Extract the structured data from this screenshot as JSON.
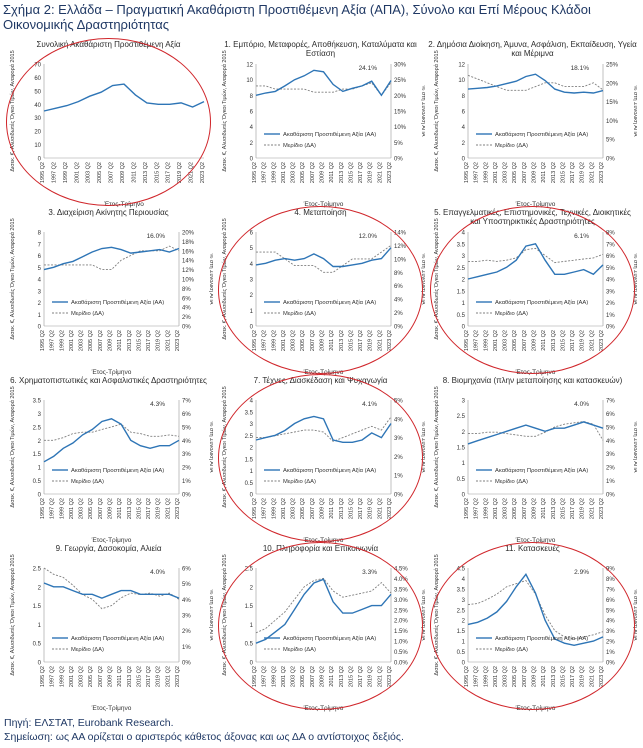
{
  "title": "Σχήμα 2: Ελλάδα – Πραγματική Ακαθάριστη Προστιθέμενη Αξία (ΑΠΑ), Σύνολο και Επί Μέρους Κλάδοι Οικονομικής Δραστηριότητας",
  "source": "Πηγή: ΕΛΣΤΑΤ, Eurobank Research.",
  "note": "Σημείωση: ως ΑΑ ορίζεται ο αριστερός κάθετος άξονας και ως ΔΑ ο αντίστοιχος δεξιός.",
  "colors": {
    "main": "#2e75b6",
    "share": "#7f7f7f",
    "highlight": "#d0262b",
    "text": "#1f3864"
  },
  "legend": {
    "main": "Ακαθάριστη Προστιθέμενη Αξία (ΑΑ)",
    "share": "Μερίδιο (ΔΑ)"
  },
  "ylabel_left": "Δισεκ. €, Αλυσιδωτές Όγκοι Τιμών, Αναφορά 2015",
  "ylabel_right": "% στη Συνολική ΑΠΑ",
  "xlabel": "Έτος-Τρίμηνο",
  "chart_data": [
    {
      "type": "line",
      "title": "Συνολική Ακαθάριστη Προστιθέμενη Αξία",
      "ylim": [
        0,
        70
      ],
      "yticks": [
        0,
        10,
        20,
        30,
        40,
        50,
        60,
        70
      ],
      "x": [
        "1995 Q2",
        "1997 Q2",
        "1999 Q2",
        "2001 Q2",
        "2003 Q2",
        "2005 Q2",
        "2007 Q2",
        "2009 Q2",
        "2011 Q2",
        "2013 Q2",
        "2015 Q2",
        "2017 Q2",
        "2019 Q2",
        "2021 Q2",
        "2023 Q2"
      ],
      "series": [
        {
          "name": "Ακαθάριστη Προστιθέμενη Αξία (ΑΑ)",
          "values": [
            35,
            37,
            39,
            42,
            46,
            49,
            54,
            55,
            47,
            41,
            40,
            40,
            41,
            38,
            42
          ]
        }
      ],
      "circled": true
    },
    {
      "type": "line",
      "title": "1. Εμπόριο, Μεταφορές, Αποθήκευση, Καταλύματα και Εστίαση",
      "ylim": [
        0,
        12
      ],
      "y2lim": [
        0,
        0.3
      ],
      "yticks": [
        0,
        2,
        4,
        6,
        8,
        10,
        12
      ],
      "y2ticks": [
        "0%",
        "5%",
        "10%",
        "15%",
        "20%",
        "25%",
        "30%"
      ],
      "annotation": "24.1%",
      "x": [
        "1995 Q2",
        "1997 Q2",
        "1999 Q2",
        "2001 Q2",
        "2003 Q2",
        "2005 Q2",
        "2007 Q2",
        "2009 Q2",
        "2011 Q2",
        "2013 Q2",
        "2015 Q2",
        "2017 Q2",
        "2019 Q2",
        "2021 Q2",
        "2023 Q2"
      ],
      "series": [
        {
          "name": "Ακαθάριστη Προστιθέμενη Αξία (ΑΑ)",
          "values": [
            8.0,
            8.3,
            8.5,
            9.2,
            10.0,
            10.5,
            11.2,
            11.0,
            9.4,
            8.5,
            8.9,
            9.2,
            9.8,
            8.0,
            9.9
          ]
        },
        {
          "name": "Μερίδιο (ΔΑ)",
          "values": [
            0.23,
            0.23,
            0.22,
            0.22,
            0.22,
            0.22,
            0.21,
            0.21,
            0.21,
            0.22,
            0.22,
            0.23,
            0.24,
            0.2,
            0.241
          ]
        }
      ],
      "circled": false
    },
    {
      "type": "line",
      "title": "2. Δημόσια Διοίκηση, Άμυνα, Ασφάλιση, Εκπαίδευση, Υγεία και Μέριμνα",
      "ylim": [
        0,
        12
      ],
      "y2lim": [
        0,
        0.25
      ],
      "yticks": [
        0,
        2,
        4,
        6,
        8,
        10,
        12
      ],
      "y2ticks": [
        "0%",
        "5%",
        "10%",
        "15%",
        "20%",
        "25%"
      ],
      "annotation": "18.1%",
      "x": [
        "1995 Q2",
        "1997 Q2",
        "1999 Q2",
        "2001 Q2",
        "2003 Q2",
        "2005 Q2",
        "2007 Q2",
        "2009 Q2",
        "2011 Q2",
        "2013 Q2",
        "2015 Q2",
        "2017 Q2",
        "2019 Q2",
        "2021 Q2",
        "2023 Q2"
      ],
      "series": [
        {
          "name": "Ακαθάριστη Προστιθέμενη Αξία (ΑΑ)",
          "values": [
            8.8,
            8.9,
            9.0,
            9.2,
            9.5,
            9.8,
            10.4,
            10.7,
            9.9,
            8.8,
            8.4,
            8.3,
            8.4,
            8.3,
            8.6
          ]
        },
        {
          "name": "Μερίδιο (ΔΑ)",
          "values": [
            0.22,
            0.21,
            0.2,
            0.19,
            0.18,
            0.18,
            0.18,
            0.19,
            0.2,
            0.2,
            0.19,
            0.19,
            0.19,
            0.2,
            0.181
          ]
        }
      ],
      "circled": false
    },
    {
      "type": "line",
      "title": "3. Διαχείριση Ακίνητης Περιουσίας",
      "ylim": [
        0,
        8
      ],
      "y2lim": [
        0,
        0.2
      ],
      "yticks": [
        0,
        1,
        2,
        3,
        4,
        5,
        6,
        7,
        8
      ],
      "y2ticks": [
        "0%",
        "2%",
        "4%",
        "6%",
        "8%",
        "10%",
        "12%",
        "14%",
        "16%",
        "18%",
        "20%"
      ],
      "annotation": "16.0%",
      "x": [
        "1995 Q2",
        "1997 Q2",
        "1999 Q2",
        "2001 Q2",
        "2003 Q2",
        "2005 Q2",
        "2007 Q2",
        "2009 Q2",
        "2011 Q2",
        "2013 Q2",
        "2015 Q2",
        "2017 Q2",
        "2019 Q2",
        "2021 Q2",
        "2023 Q2"
      ],
      "series": [
        {
          "name": "Ακαθάριστη Προστιθέμενη Αξία (ΑΑ)",
          "values": [
            4.8,
            5.0,
            5.3,
            5.5,
            5.9,
            6.3,
            6.6,
            6.7,
            6.5,
            6.2,
            6.3,
            6.4,
            6.5,
            6.3,
            6.6
          ]
        },
        {
          "name": "Μερίδιο (ΔΑ)",
          "values": [
            0.13,
            0.13,
            0.13,
            0.13,
            0.13,
            0.13,
            0.12,
            0.12,
            0.14,
            0.15,
            0.16,
            0.16,
            0.16,
            0.17,
            0.16
          ]
        }
      ],
      "circled": false
    },
    {
      "type": "line",
      "title": "4. Μεταποίηση",
      "ylim": [
        0,
        6
      ],
      "y2lim": [
        0,
        0.14
      ],
      "yticks": [
        0,
        1,
        2,
        3,
        4,
        5,
        6
      ],
      "y2ticks": [
        "0%",
        "2%",
        "4%",
        "6%",
        "8%",
        "10%",
        "12%",
        "14%"
      ],
      "annotation": "12.0%",
      "x": [
        "1995 Q2",
        "1997 Q2",
        "1999 Q2",
        "2001 Q2",
        "2003 Q2",
        "2005 Q2",
        "2007 Q2",
        "2009 Q2",
        "2011 Q2",
        "2013 Q2",
        "2015 Q2",
        "2017 Q2",
        "2019 Q2",
        "2021 Q2",
        "2023 Q2"
      ],
      "series": [
        {
          "name": "Ακαθάριστη Προστιθέμενη Αξία (ΑΑ)",
          "values": [
            3.9,
            4.0,
            4.2,
            4.3,
            4.2,
            4.3,
            4.6,
            4.3,
            3.8,
            3.8,
            3.9,
            4.0,
            4.2,
            4.3,
            5.0
          ]
        },
        {
          "name": "Μερίδιο (ΔΑ)",
          "values": [
            0.11,
            0.11,
            0.11,
            0.1,
            0.09,
            0.09,
            0.09,
            0.08,
            0.08,
            0.09,
            0.1,
            0.1,
            0.1,
            0.11,
            0.12
          ]
        }
      ],
      "circled": true
    },
    {
      "type": "line",
      "title": "5. Επαγγελματικές, Επιστημονικές, Τεχνικές, Διοικητικές και Υποστηρικτικές Δραστηριότητες",
      "ylim": [
        0,
        4
      ],
      "y2lim": [
        0,
        0.08
      ],
      "yticks": [
        0,
        0.5,
        1,
        1.5,
        2,
        2.5,
        3,
        3.5,
        4
      ],
      "y2ticks": [
        "0%",
        "1%",
        "2%",
        "3%",
        "4%",
        "5%",
        "6%",
        "7%",
        "8%"
      ],
      "annotation": "6.1%",
      "x": [
        "1995 Q2",
        "1997 Q2",
        "1999 Q2",
        "2001 Q2",
        "2003 Q2",
        "2005 Q2",
        "2007 Q2",
        "2009 Q2",
        "2011 Q2",
        "2013 Q2",
        "2015 Q2",
        "2017 Q2",
        "2019 Q2",
        "2021 Q2",
        "2023 Q2"
      ],
      "series": [
        {
          "name": "Ακαθάριστη Προστιθέμενη Αξία (ΑΑ)",
          "values": [
            2.0,
            2.1,
            2.2,
            2.3,
            2.5,
            2.8,
            3.4,
            3.5,
            2.8,
            2.2,
            2.2,
            2.3,
            2.4,
            2.2,
            2.6
          ]
        },
        {
          "name": "Μερίδιο (ΔΑ)",
          "values": [
            0.055,
            0.055,
            0.056,
            0.055,
            0.056,
            0.058,
            0.065,
            0.066,
            0.06,
            0.054,
            0.055,
            0.056,
            0.057,
            0.058,
            0.061
          ]
        }
      ],
      "circled": true
    },
    {
      "type": "line",
      "title": "6. Χρηματοπιστωτικές και Ασφαλιστικές Δραστηριότητες",
      "ylim": [
        0,
        3.5
      ],
      "y2lim": [
        0,
        0.07
      ],
      "yticks": [
        0,
        0.5,
        1,
        1.5,
        2,
        2.5,
        3,
        3.5
      ],
      "y2ticks": [
        "0%",
        "1%",
        "2%",
        "3%",
        "4%",
        "5%",
        "6%",
        "7%"
      ],
      "annotation": "4.3%",
      "x": [
        "1995 Q2",
        "1997 Q2",
        "1999 Q2",
        "2001 Q2",
        "2003 Q2",
        "2005 Q2",
        "2007 Q2",
        "2009 Q2",
        "2011 Q2",
        "2013 Q2",
        "2015 Q2",
        "2017 Q2",
        "2019 Q2",
        "2021 Q2",
        "2023 Q2"
      ],
      "series": [
        {
          "name": "Ακαθάριστη Προστιθέμενη Αξία (ΑΑ)",
          "values": [
            1.2,
            1.4,
            1.7,
            1.9,
            2.2,
            2.4,
            2.7,
            2.8,
            2.6,
            2.0,
            1.8,
            1.7,
            1.8,
            1.8,
            2.0
          ]
        },
        {
          "name": "Μερίδιο (ΔΑ)",
          "values": [
            0.04,
            0.04,
            0.042,
            0.045,
            0.046,
            0.046,
            0.048,
            0.05,
            0.052,
            0.046,
            0.045,
            0.043,
            0.043,
            0.044,
            0.043
          ]
        }
      ],
      "circled": false
    },
    {
      "type": "line",
      "title": "7. Τέχνες, Διασκέδαση και Ψυχαγωγία",
      "ylim": [
        0,
        4
      ],
      "y2lim": [
        0,
        0.05
      ],
      "yticks": [
        0,
        0.5,
        1,
        1.5,
        2,
        2.5,
        3,
        3.5,
        4
      ],
      "y2ticks": [
        "0%",
        "1%",
        "2%",
        "3%",
        "4%",
        "5%"
      ],
      "annotation": "4.1%",
      "x": [
        "1995 Q2",
        "1997 Q2",
        "1999 Q2",
        "2001 Q2",
        "2003 Q2",
        "2005 Q2",
        "2007 Q2",
        "2009 Q2",
        "2011 Q2",
        "2013 Q2",
        "2015 Q2",
        "2017 Q2",
        "2019 Q2",
        "2021 Q2",
        "2023 Q2"
      ],
      "series": [
        {
          "name": "Ακαθάριστη Προστιθέμενη Αξία (ΑΑ)",
          "values": [
            2.3,
            2.4,
            2.5,
            2.7,
            3.0,
            3.2,
            3.3,
            3.2,
            2.3,
            2.2,
            2.2,
            2.3,
            2.6,
            2.4,
            3.0
          ]
        },
        {
          "name": "Μερίδιο (ΔΑ)",
          "values": [
            0.03,
            0.03,
            0.031,
            0.032,
            0.033,
            0.034,
            0.034,
            0.033,
            0.028,
            0.03,
            0.032,
            0.034,
            0.036,
            0.034,
            0.041
          ]
        }
      ],
      "circled": true
    },
    {
      "type": "line",
      "title": "8. Βιομηχανία (πλην μεταποίησης και κατασκευών)",
      "ylim": [
        0,
        3
      ],
      "y2lim": [
        0,
        0.07
      ],
      "yticks": [
        0,
        0.5,
        1,
        1.5,
        2,
        2.5,
        3
      ],
      "y2ticks": [
        "0%",
        "1%",
        "2%",
        "3%",
        "4%",
        "5%",
        "6%",
        "7%"
      ],
      "annotation": "4.0%",
      "x": [
        "1995 Q2",
        "1997 Q2",
        "1999 Q2",
        "2001 Q2",
        "2003 Q2",
        "2005 Q2",
        "2007 Q2",
        "2009 Q2",
        "2011 Q2",
        "2013 Q2",
        "2015 Q2",
        "2017 Q2",
        "2019 Q2",
        "2021 Q2",
        "2023 Q2"
      ],
      "series": [
        {
          "name": "Ακαθάριστη Προστιθέμενη Αξία (ΑΑ)",
          "values": [
            1.6,
            1.7,
            1.8,
            1.9,
            2.0,
            2.1,
            2.2,
            2.1,
            2.0,
            2.1,
            2.1,
            2.2,
            2.3,
            2.2,
            2.1
          ]
        },
        {
          "name": "Μερίδιο (ΔΑ)",
          "values": [
            0.045,
            0.045,
            0.046,
            0.046,
            0.045,
            0.044,
            0.043,
            0.043,
            0.046,
            0.05,
            0.052,
            0.053,
            0.054,
            0.052,
            0.04
          ]
        }
      ],
      "circled": false
    },
    {
      "type": "line",
      "title": "9. Γεωργία, Δασοκομία, Αλιεία",
      "ylim": [
        0,
        2.5
      ],
      "y2lim": [
        0,
        0.06
      ],
      "yticks": [
        0,
        0.5,
        1,
        1.5,
        2,
        2.5
      ],
      "y2ticks": [
        "0%",
        "1%",
        "2%",
        "3%",
        "4%",
        "5%",
        "6%"
      ],
      "annotation": "4.0%",
      "x": [
        "1995 Q2",
        "1997 Q2",
        "1999 Q2",
        "2001 Q2",
        "2003 Q2",
        "2005 Q2",
        "2007 Q2",
        "2009 Q2",
        "2011 Q2",
        "2013 Q2",
        "2015 Q2",
        "2017 Q2",
        "2019 Q2",
        "2021 Q2",
        "2023 Q2"
      ],
      "series": [
        {
          "name": "Ακαθάριστη Προστιθέμενη Αξία (ΑΑ)",
          "values": [
            2.1,
            2.0,
            2.0,
            1.9,
            1.8,
            1.8,
            1.7,
            1.8,
            1.9,
            1.9,
            1.8,
            1.8,
            1.8,
            1.8,
            1.7
          ]
        },
        {
          "name": "Μερίδιο (ΔΑ)",
          "values": [
            0.06,
            0.056,
            0.054,
            0.049,
            0.043,
            0.04,
            0.034,
            0.036,
            0.041,
            0.044,
            0.043,
            0.044,
            0.042,
            0.044,
            0.04
          ]
        }
      ],
      "circled": false
    },
    {
      "type": "line",
      "title": "10. Πληροφορία και Επικοινωνία",
      "ylim": [
        0,
        2.5
      ],
      "y2lim": [
        0,
        0.045
      ],
      "yticks": [
        0,
        0.5,
        1,
        1.5,
        2,
        2.5
      ],
      "y2ticks": [
        "0.0%",
        "0.5%",
        "1.0%",
        "1.5%",
        "2.0%",
        "2.5%",
        "3.0%",
        "3.5%",
        "4.0%",
        "4.5%"
      ],
      "annotation": "3.3%",
      "x": [
        "1995 Q2",
        "1997 Q2",
        "1999 Q2",
        "2001 Q2",
        "2003 Q2",
        "2005 Q2",
        "2007 Q2",
        "2009 Q2",
        "2011 Q2",
        "2013 Q2",
        "2015 Q2",
        "2017 Q2",
        "2019 Q2",
        "2021 Q2",
        "2023 Q2"
      ],
      "series": [
        {
          "name": "Ακαθάριστη Προστιθέμενη Αξία (ΑΑ)",
          "values": [
            0.5,
            0.6,
            0.8,
            1.0,
            1.4,
            1.8,
            2.1,
            2.2,
            1.6,
            1.3,
            1.3,
            1.4,
            1.5,
            1.5,
            1.8
          ]
        },
        {
          "name": "Μερίδιο (ΔΑ)",
          "values": [
            0.014,
            0.016,
            0.02,
            0.024,
            0.03,
            0.036,
            0.039,
            0.04,
            0.034,
            0.031,
            0.032,
            0.033,
            0.034,
            0.038,
            0.033
          ]
        }
      ],
      "circled": true
    },
    {
      "type": "line",
      "title": "11. Κατασκευές",
      "ylim": [
        0,
        4.5
      ],
      "y2lim": [
        0,
        0.09
      ],
      "yticks": [
        0,
        0.5,
        1,
        1.5,
        2,
        2.5,
        3,
        3.5,
        4,
        4.5
      ],
      "y2ticks": [
        "0%",
        "1%",
        "2%",
        "3%",
        "4%",
        "5%",
        "6%",
        "7%",
        "8%",
        "9%"
      ],
      "annotation": "2.9%",
      "x": [
        "1995 Q2",
        "1997 Q2",
        "1999 Q2",
        "2001 Q2",
        "2003 Q2",
        "2005 Q2",
        "2007 Q2",
        "2009 Q2",
        "2011 Q2",
        "2013 Q2",
        "2015 Q2",
        "2017 Q2",
        "2019 Q2",
        "2021 Q2",
        "2023 Q2"
      ],
      "series": [
        {
          "name": "Ακαθάριστη Προστιθέμενη Αξία (ΑΑ)",
          "values": [
            1.8,
            1.9,
            2.1,
            2.4,
            2.9,
            3.6,
            4.2,
            3.3,
            2.0,
            1.1,
            0.9,
            0.8,
            0.9,
            1.0,
            1.2
          ]
        },
        {
          "name": "Μερίδιο (ΔΑ)",
          "values": [
            0.055,
            0.056,
            0.06,
            0.065,
            0.072,
            0.075,
            0.078,
            0.065,
            0.045,
            0.03,
            0.024,
            0.022,
            0.024,
            0.026,
            0.029
          ]
        }
      ],
      "circled": true
    }
  ]
}
